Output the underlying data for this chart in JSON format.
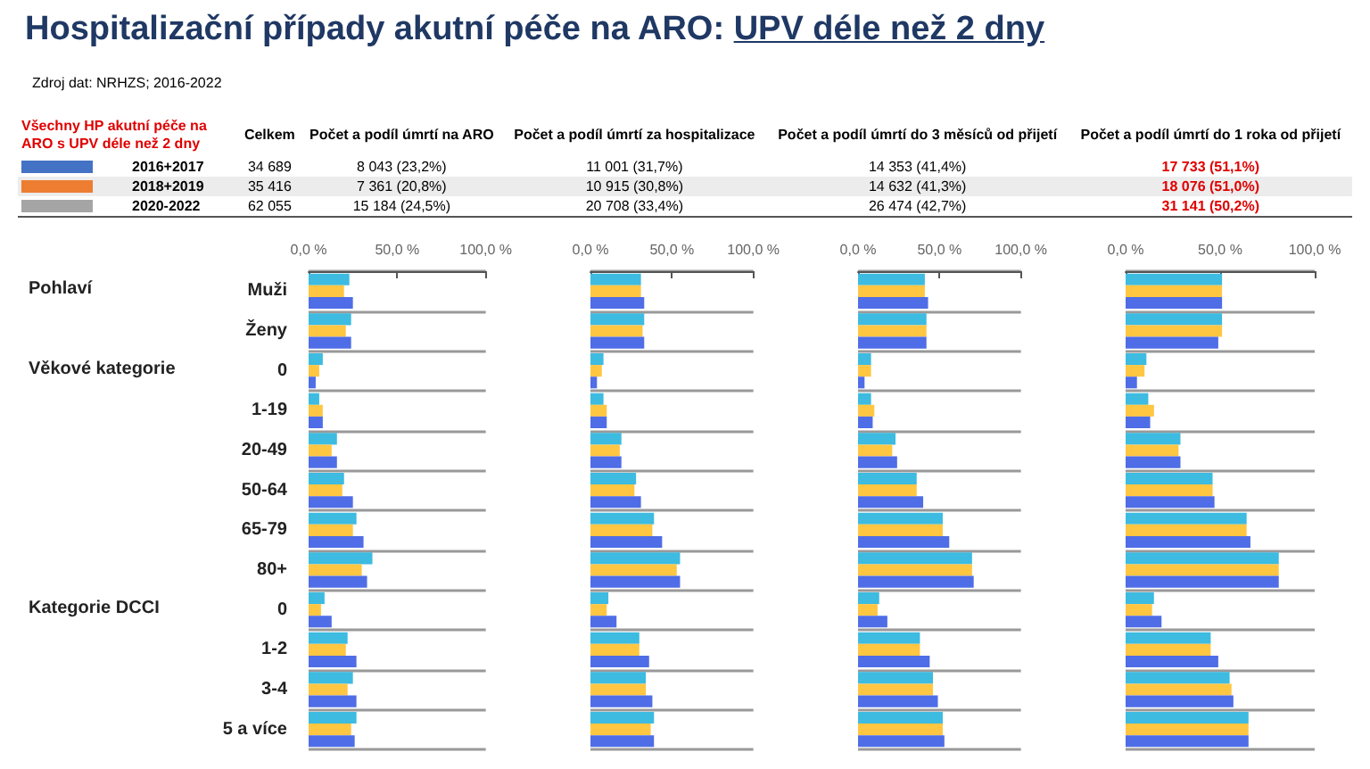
{
  "chart_data": [
    {
      "type": "other",
      "title": "Hospitalizační případy akutní péče na ARO: UPV déle než 2 dny",
      "subtitle": "Zdroj dat: NRHZS; 2016-2022",
      "annotations": [
        "Všechny HP akutní péče na ARO s UPV déle než 2 dny",
        "Celkem",
        "Počet a podíl úmrtí na ARO",
        "Počet a podíl úmrtí za hospitalizace",
        "Počet a podíl úmrtí do 3 měsíců od přijetí",
        "Počet a podíl úmrtí do 1 roka od přijetí",
        "2016+2017",
        "34 689",
        "8 043 (23,2%)",
        "11 001 (31,7%)",
        "14 353 (41,4%)",
        "17 733 (51,1%)",
        "2018+2019",
        "35 416",
        "7 361 (20,8%)",
        "10 915 (30,8%)",
        "14 632 (41,3%)",
        "18 076 (51,0%)",
        "2020-2022",
        "62 055",
        "15 184 (24,5%)",
        "20 708 (33,4%)",
        "26 474 (42,7%)",
        "31 141 (50,2%)"
      ],
      "colors": [
        "#4472c4",
        "#ed7d31",
        "#a5a5a5"
      ]
    },
    {
      "type": "bar",
      "orientation": "horizontal",
      "grid": "y",
      "annotations": [
        "Pohlaví",
        "Věkové kategorie",
        "Kategorie DCCI"
      ],
      "categories": [
        "Muži",
        "Ženy",
        "0",
        "1-19",
        "20-49",
        "50-64",
        "65-79",
        "80+",
        "0",
        "1-2",
        "3-4",
        "5 a více"
      ],
      "xlim": [
        0,
        100
      ],
      "xticks": [
        {
          "value": 0,
          "label": "0,0 %"
        },
        {
          "value": 50,
          "label": "50,0 %"
        },
        {
          "value": 100,
          "label": "100,0 %"
        }
      ],
      "series": [
        {
          "color": "#3dbbe0",
          "values": [
            23,
            24,
            8,
            6,
            16,
            20,
            27,
            36,
            9,
            22,
            25,
            27
          ]
        },
        {
          "color": "#ffc642",
          "values": [
            20,
            21,
            6,
            8,
            13,
            19,
            25,
            30,
            7,
            21,
            22,
            24
          ]
        },
        {
          "color": "#4f6de6",
          "values": [
            25,
            24,
            4,
            8,
            16,
            25,
            31,
            33,
            13,
            27,
            27,
            26
          ]
        }
      ]
    },
    {
      "type": "bar",
      "orientation": "horizontal",
      "grid": "y",
      "tick_labels": "x",
      "categories": [
        null,
        null,
        null,
        null,
        null,
        null,
        null,
        null,
        null,
        null,
        null,
        null
      ],
      "xlim": [
        0,
        100
      ],
      "xticks": [
        {
          "value": 0,
          "label": "0,0 %"
        },
        {
          "value": 50,
          "label": "50,0 %"
        },
        {
          "value": 100,
          "label": "100,0 %"
        }
      ],
      "series": [
        {
          "color": "#3dbbe0",
          "values": [
            31,
            33,
            8,
            8,
            19,
            28,
            39,
            55,
            11,
            30,
            34,
            39
          ]
        },
        {
          "color": "#ffc642",
          "values": [
            31,
            32,
            7,
            10,
            18,
            27,
            38,
            53,
            10,
            30,
            34,
            37
          ]
        },
        {
          "color": "#4f6de6",
          "values": [
            33,
            33,
            4,
            10,
            19,
            31,
            44,
            55,
            16,
            36,
            38,
            39
          ]
        }
      ]
    },
    {
      "type": "bar",
      "orientation": "horizontal",
      "grid": "y",
      "tick_labels": "x",
      "categories": [
        null,
        null,
        null,
        null,
        null,
        null,
        null,
        null,
        null,
        null,
        null,
        null
      ],
      "xlim": [
        0,
        100
      ],
      "xticks": [
        {
          "value": 0,
          "label": "0,0 %"
        },
        {
          "value": 50,
          "label": "50,0 %"
        },
        {
          "value": 100,
          "label": "100,0 %"
        }
      ],
      "series": [
        {
          "color": "#3dbbe0",
          "values": [
            41,
            42,
            8,
            8,
            23,
            36,
            52,
            70,
            13,
            38,
            46,
            52
          ]
        },
        {
          "color": "#ffc642",
          "values": [
            41,
            42,
            8,
            10,
            21,
            36,
            52,
            70,
            12,
            38,
            46,
            52
          ]
        },
        {
          "color": "#4f6de6",
          "values": [
            43,
            42,
            4,
            9,
            24,
            40,
            56,
            71,
            18,
            44,
            49,
            53
          ]
        }
      ]
    },
    {
      "type": "bar",
      "orientation": "horizontal",
      "grid": "y",
      "tick_labels": "x",
      "categories": [
        null,
        null,
        null,
        null,
        null,
        null,
        null,
        null,
        null,
        null,
        null,
        null
      ],
      "xlim": [
        0,
        100
      ],
      "xticks": [
        {
          "value": 0,
          "label": "0,0 %"
        },
        {
          "value": 50,
          "label": "50,0 %"
        },
        {
          "value": 100,
          "label": "100,0 %"
        }
      ],
      "series": [
        {
          "color": "#3dbbe0",
          "values": [
            51,
            51,
            11,
            12,
            29,
            46,
            64,
            81,
            15,
            45,
            55,
            65
          ]
        },
        {
          "color": "#ffc642",
          "values": [
            51,
            51,
            10,
            15,
            28,
            46,
            64,
            81,
            14,
            45,
            56,
            65
          ]
        },
        {
          "color": "#4f6de6",
          "values": [
            51,
            49,
            6,
            13,
            29,
            47,
            66,
            81,
            19,
            49,
            57,
            65
          ]
        }
      ]
    }
  ]
}
